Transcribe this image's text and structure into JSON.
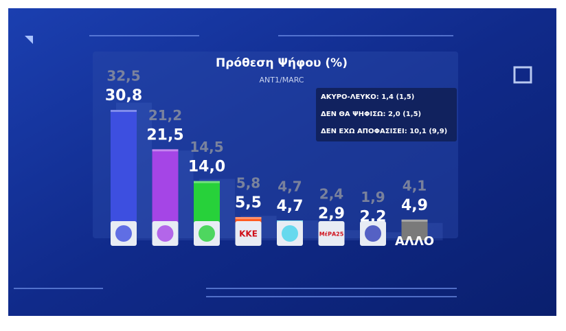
{
  "chart_data": {
    "type": "bar",
    "title": "Πρόθεση Ψήφου (%)",
    "subtitle": "ANT1/MARC",
    "categories": [
      null,
      null,
      null,
      "ΚΚΕ",
      null,
      "ΜέΡΑ25",
      null,
      "ΑΛΛΟ"
    ],
    "colors": [
      "#3d4fe0",
      "#a545e6",
      "#27d13a",
      "#ff5a1f",
      "#45d4ec",
      "#ff9c55",
      "#2f3fb8",
      "#7a7a7a"
    ],
    "series": [
      {
        "values": [
          30.8,
          21.5,
          14.0,
          5.5,
          4.7,
          2.9,
          2.2,
          4.9
        ],
        "value_labels": [
          "30,8",
          "21,5",
          "14,0",
          "5,5",
          "4,7",
          "2,9",
          "2,2",
          "4,9"
        ]
      },
      {
        "values": [
          32.5,
          21.2,
          14.5,
          5.8,
          4.7,
          2.4,
          1.9,
          4.1
        ],
        "value_labels": [
          "32,5",
          "21,2",
          "14,5",
          "5,8",
          "4,7",
          "2,4",
          "1,9",
          "4,1"
        ]
      }
    ],
    "annotations": [
      "ΑΚΥΡΟ-ΛΕΥΚΟ: 1,4 (1,5)",
      "ΔΕΝ ΘΑ ΨΗΦΙΣΩ: 2,0 (1,5)",
      "ΔΕΝ ΕΧΩ ΑΠΟΦΑΣΙΣΕΙ: 10,1 (9,9)"
    ]
  }
}
